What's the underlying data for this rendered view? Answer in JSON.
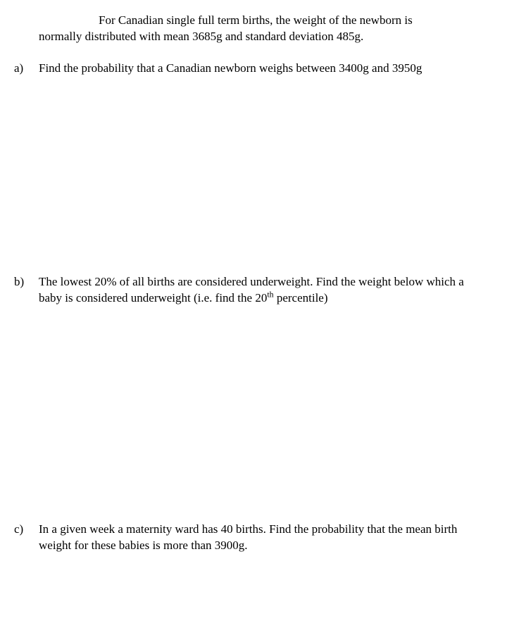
{
  "intro": {
    "line1": "For Canadian single full term births, the weight of the newborn is",
    "line2": "normally distributed with mean 3685g and standard deviation 485g."
  },
  "qa": {
    "label": "a)",
    "text": "Find the probability that a Canadian newborn weighs between 3400g and 3950g"
  },
  "qb": {
    "label": "b)",
    "text_part1": "The lowest 20% of all births are considered underweight. Find the weight below which a baby is considered underweight (i.e. find the 20",
    "sup": "th",
    "text_part2": " percentile)"
  },
  "qc": {
    "label": "c)",
    "text": "In a given week a maternity ward has 40 births. Find the probability that the mean birth weight for these babies is more than 3900g."
  }
}
